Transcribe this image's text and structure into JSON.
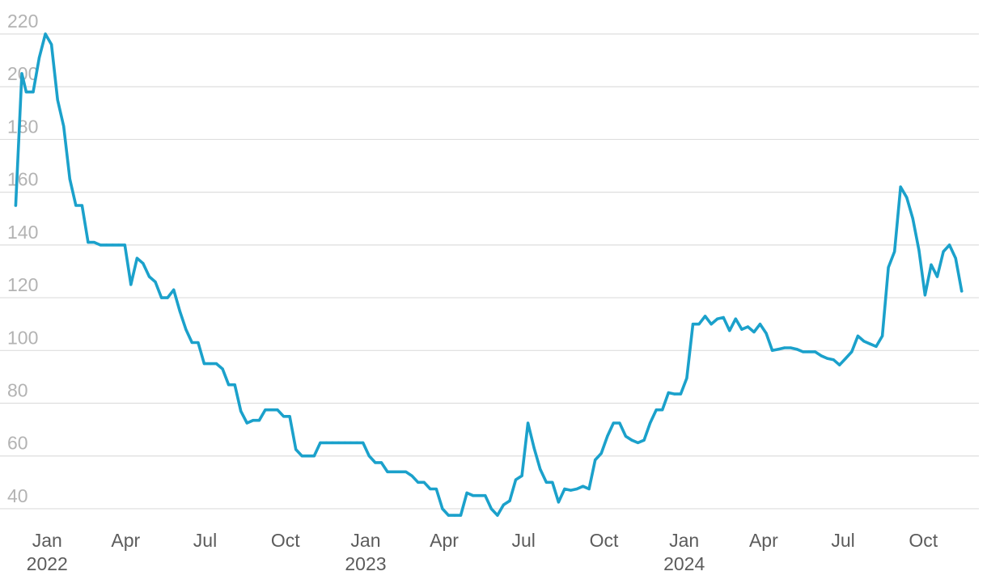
{
  "chart_data": {
    "type": "line",
    "title": "",
    "xlabel": "",
    "ylabel": "",
    "ylim": [
      36,
      220
    ],
    "grid": "horizontal",
    "colors": {
      "line": "#1ba1cb",
      "grid": "#dedede",
      "ytick": "#b3b3b3",
      "xtick": "#5c5c5c"
    },
    "y_ticks": [
      "40",
      "60",
      "80",
      "100",
      "120",
      "140",
      "160",
      "180",
      "200",
      "220"
    ],
    "x_ticks": [
      {
        "date": "2022-01-01",
        "label": "Jan",
        "year": "2022"
      },
      {
        "date": "2022-04-01",
        "label": "Apr",
        "year": ""
      },
      {
        "date": "2022-07-01",
        "label": "Jul",
        "year": ""
      },
      {
        "date": "2022-10-01",
        "label": "Oct",
        "year": ""
      },
      {
        "date": "2023-01-01",
        "label": "Jan",
        "year": "2023"
      },
      {
        "date": "2023-04-01",
        "label": "Apr",
        "year": ""
      },
      {
        "date": "2023-07-01",
        "label": "Jul",
        "year": ""
      },
      {
        "date": "2023-10-01",
        "label": "Oct",
        "year": ""
      },
      {
        "date": "2024-01-01",
        "label": "Jan",
        "year": "2024"
      },
      {
        "date": "2024-04-01",
        "label": "Apr",
        "year": ""
      },
      {
        "date": "2024-07-01",
        "label": "Jul",
        "year": ""
      },
      {
        "date": "2024-10-01",
        "label": "Oct",
        "year": ""
      }
    ],
    "x_range": [
      "2021-11-08",
      "2024-12-13"
    ],
    "series": [
      {
        "values": [
          [
            "2021-11-26",
            155
          ],
          [
            "2021-12-03",
            205
          ],
          [
            "2021-12-08",
            198
          ],
          [
            "2021-12-16",
            198
          ],
          [
            "2021-12-23",
            211
          ],
          [
            "2021-12-30",
            220
          ],
          [
            "2022-01-06",
            216
          ],
          [
            "2022-01-13",
            195
          ],
          [
            "2022-01-20",
            185
          ],
          [
            "2022-01-27",
            165
          ],
          [
            "2022-02-03",
            155
          ],
          [
            "2022-02-10",
            155
          ],
          [
            "2022-02-17",
            141
          ],
          [
            "2022-02-24",
            141
          ],
          [
            "2022-03-03",
            140
          ],
          [
            "2022-03-10",
            140
          ],
          [
            "2022-03-17",
            140
          ],
          [
            "2022-03-24",
            140
          ],
          [
            "2022-03-31",
            140
          ],
          [
            "2022-04-07",
            125
          ],
          [
            "2022-04-14",
            135
          ],
          [
            "2022-04-21",
            133
          ],
          [
            "2022-04-28",
            128
          ],
          [
            "2022-05-05",
            126
          ],
          [
            "2022-05-12",
            120
          ],
          [
            "2022-05-19",
            120
          ],
          [
            "2022-05-26",
            123
          ],
          [
            "2022-06-02",
            115
          ],
          [
            "2022-06-09",
            108
          ],
          [
            "2022-06-16",
            103
          ],
          [
            "2022-06-23",
            103
          ],
          [
            "2022-06-30",
            95
          ],
          [
            "2022-07-07",
            95
          ],
          [
            "2022-07-14",
            95
          ],
          [
            "2022-07-21",
            93
          ],
          [
            "2022-07-28",
            87
          ],
          [
            "2022-08-04",
            87
          ],
          [
            "2022-08-11",
            77
          ],
          [
            "2022-08-18",
            72.5
          ],
          [
            "2022-08-25",
            73.5
          ],
          [
            "2022-09-01",
            73.5
          ],
          [
            "2022-09-08",
            77.5
          ],
          [
            "2022-09-15",
            77.5
          ],
          [
            "2022-09-22",
            77.5
          ],
          [
            "2022-09-29",
            75
          ],
          [
            "2022-10-06",
            75
          ],
          [
            "2022-10-13",
            62.5
          ],
          [
            "2022-10-20",
            60
          ],
          [
            "2022-10-27",
            60
          ],
          [
            "2022-11-03",
            60
          ],
          [
            "2022-11-10",
            65
          ],
          [
            "2022-11-17",
            65
          ],
          [
            "2022-11-24",
            65
          ],
          [
            "2022-12-01",
            65
          ],
          [
            "2022-12-08",
            65
          ],
          [
            "2022-12-15",
            65
          ],
          [
            "2022-12-22",
            65
          ],
          [
            "2022-12-29",
            65
          ],
          [
            "2023-01-05",
            60
          ],
          [
            "2023-01-12",
            57.5
          ],
          [
            "2023-01-19",
            57.5
          ],
          [
            "2023-01-26",
            54
          ],
          [
            "2023-02-02",
            54
          ],
          [
            "2023-02-09",
            54
          ],
          [
            "2023-02-16",
            54
          ],
          [
            "2023-02-23",
            52.5
          ],
          [
            "2023-03-02",
            50
          ],
          [
            "2023-03-09",
            50
          ],
          [
            "2023-03-16",
            47.5
          ],
          [
            "2023-03-23",
            47.5
          ],
          [
            "2023-03-30",
            40
          ],
          [
            "2023-04-06",
            37.5
          ],
          [
            "2023-04-13",
            37.5
          ],
          [
            "2023-04-20",
            37.5
          ],
          [
            "2023-04-27",
            46
          ],
          [
            "2023-05-04",
            45
          ],
          [
            "2023-05-11",
            45
          ],
          [
            "2023-05-18",
            45
          ],
          [
            "2023-05-25",
            40
          ],
          [
            "2023-06-01",
            37.5
          ],
          [
            "2023-06-08",
            41.5
          ],
          [
            "2023-06-15",
            43
          ],
          [
            "2023-06-22",
            51
          ],
          [
            "2023-06-29",
            52.5
          ],
          [
            "2023-07-06",
            72.5
          ],
          [
            "2023-07-13",
            63
          ],
          [
            "2023-07-20",
            55
          ],
          [
            "2023-07-27",
            50
          ],
          [
            "2023-08-03",
            50
          ],
          [
            "2023-08-10",
            42.5
          ],
          [
            "2023-08-17",
            47.5
          ],
          [
            "2023-08-24",
            47
          ],
          [
            "2023-08-31",
            47.5
          ],
          [
            "2023-09-07",
            48.5
          ],
          [
            "2023-09-14",
            47.5
          ],
          [
            "2023-09-21",
            58.5
          ],
          [
            "2023-09-28",
            61
          ],
          [
            "2023-10-05",
            67.5
          ],
          [
            "2023-10-12",
            72.5
          ],
          [
            "2023-10-19",
            72.5
          ],
          [
            "2023-10-26",
            67.5
          ],
          [
            "2023-11-02",
            66
          ],
          [
            "2023-11-09",
            65
          ],
          [
            "2023-11-16",
            66
          ],
          [
            "2023-11-23",
            72.5
          ],
          [
            "2023-11-30",
            77.5
          ],
          [
            "2023-12-07",
            77.5
          ],
          [
            "2023-12-14",
            84
          ],
          [
            "2023-12-21",
            83.5
          ],
          [
            "2023-12-28",
            83.5
          ],
          [
            "2024-01-04",
            89.5
          ],
          [
            "2024-01-11",
            110
          ],
          [
            "2024-01-18",
            110
          ],
          [
            "2024-01-25",
            113
          ],
          [
            "2024-02-01",
            110
          ],
          [
            "2024-02-08",
            112
          ],
          [
            "2024-02-15",
            112.5
          ],
          [
            "2024-02-22",
            107.5
          ],
          [
            "2024-02-29",
            112
          ],
          [
            "2024-03-07",
            108
          ],
          [
            "2024-03-14",
            109
          ],
          [
            "2024-03-21",
            107
          ],
          [
            "2024-03-28",
            110
          ],
          [
            "2024-04-04",
            106.5
          ],
          [
            "2024-04-11",
            100
          ],
          [
            "2024-04-18",
            100.5
          ],
          [
            "2024-04-25",
            101
          ],
          [
            "2024-05-02",
            101
          ],
          [
            "2024-05-09",
            100.5
          ],
          [
            "2024-05-16",
            99.5
          ],
          [
            "2024-05-23",
            99.5
          ],
          [
            "2024-05-30",
            99.5
          ],
          [
            "2024-06-06",
            98
          ],
          [
            "2024-06-13",
            97
          ],
          [
            "2024-06-20",
            96.5
          ],
          [
            "2024-06-27",
            94.5
          ],
          [
            "2024-07-04",
            97
          ],
          [
            "2024-07-11",
            99.5
          ],
          [
            "2024-07-18",
            105.5
          ],
          [
            "2024-07-25",
            103.5
          ],
          [
            "2024-08-01",
            102.5
          ],
          [
            "2024-08-08",
            101.5
          ],
          [
            "2024-08-15",
            105.5
          ],
          [
            "2024-08-22",
            131.5
          ],
          [
            "2024-08-29",
            137.5
          ],
          [
            "2024-09-05",
            162
          ],
          [
            "2024-09-12",
            158
          ],
          [
            "2024-09-19",
            150
          ],
          [
            "2024-09-26",
            138
          ],
          [
            "2024-10-03",
            121
          ],
          [
            "2024-10-10",
            132.5
          ],
          [
            "2024-10-17",
            128
          ],
          [
            "2024-10-24",
            137.5
          ],
          [
            "2024-10-31",
            140
          ],
          [
            "2024-11-07",
            135
          ],
          [
            "2024-11-14",
            122.5
          ]
        ]
      }
    ]
  }
}
